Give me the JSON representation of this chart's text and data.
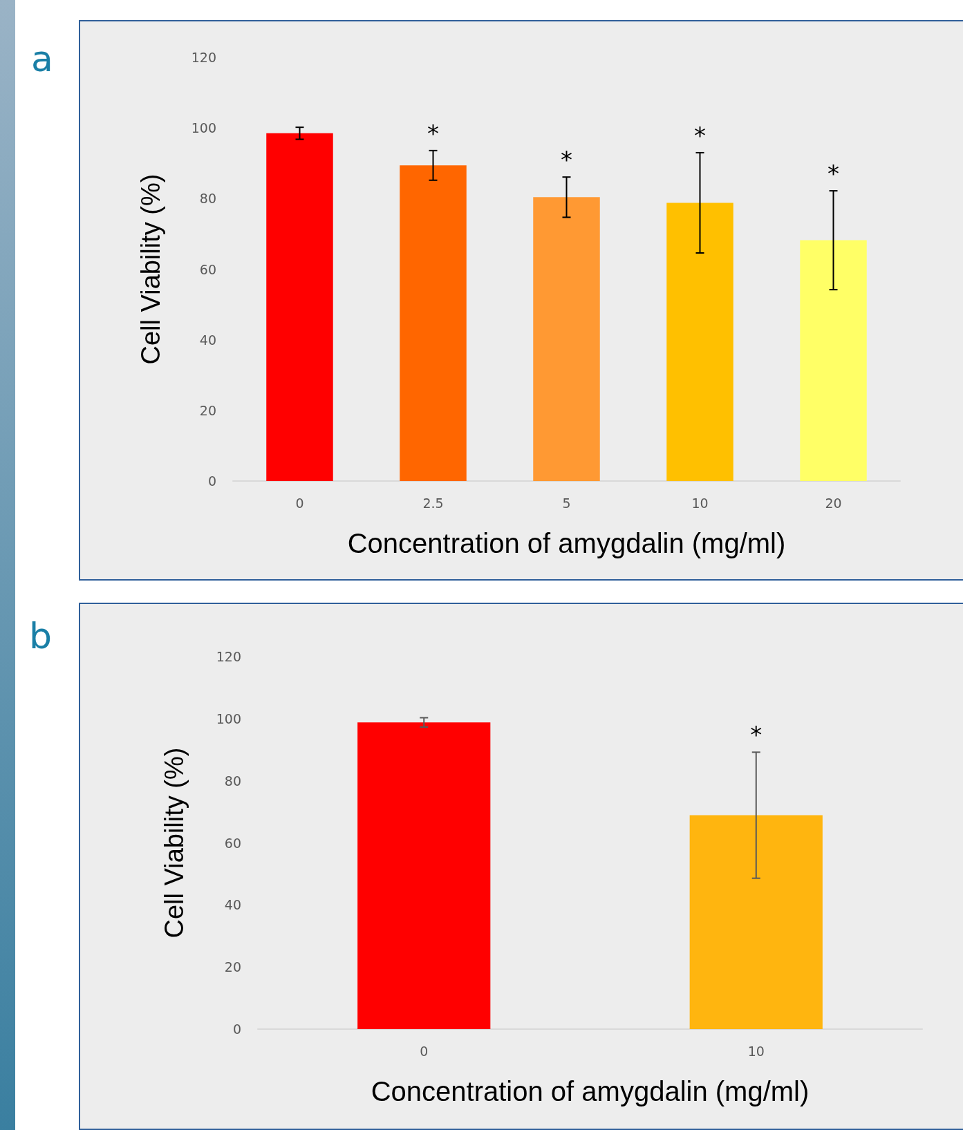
{
  "chart_data": [
    {
      "type": "bar",
      "xlabel": "Concentration of amygdalin (mg/ml)",
      "ylabel": "Cell Viability (%)",
      "categories": [
        "0",
        "2.5",
        "5",
        "10",
        "20"
      ],
      "values": [
        98.5,
        89.4,
        80.4,
        78.8,
        68.2
      ],
      "colors": [
        "#ff0000",
        "#ff6600",
        "#ff9933",
        "#ffc000",
        "#ffff66"
      ],
      "errors": [
        1.7,
        4.2,
        5.7,
        14.2,
        14
      ],
      "ylim": [
        0,
        120
      ],
      "yticks": [
        0,
        20,
        40,
        60,
        80,
        100,
        120
      ],
      "grid": false,
      "annotations": [
        "a",
        {
          "text": "*",
          "x": "2.5",
          "y": 93.6
        },
        {
          "text": "*",
          "x": "5",
          "y": 86.1
        },
        {
          "text": "*",
          "x": "10",
          "y": 93
        },
        {
          "text": "*",
          "x": "20",
          "y": 82.2
        }
      ]
    },
    {
      "type": "bar",
      "xlabel": "Concentration of amygdalin (mg/ml)",
      "ylabel": "Cell Viability (%)",
      "categories": [
        "0",
        "10"
      ],
      "values": [
        98.8,
        68.9
      ],
      "colors": [
        "#ff0000",
        "#ffb50f"
      ],
      "errors": [
        1.5,
        20.3
      ],
      "ylim": [
        0,
        120
      ],
      "yticks": [
        0,
        20,
        40,
        60,
        80,
        100,
        120
      ],
      "grid": false,
      "annotations": [
        "b",
        {
          "text": "*",
          "x": "10",
          "y": 89.2
        }
      ]
    }
  ]
}
